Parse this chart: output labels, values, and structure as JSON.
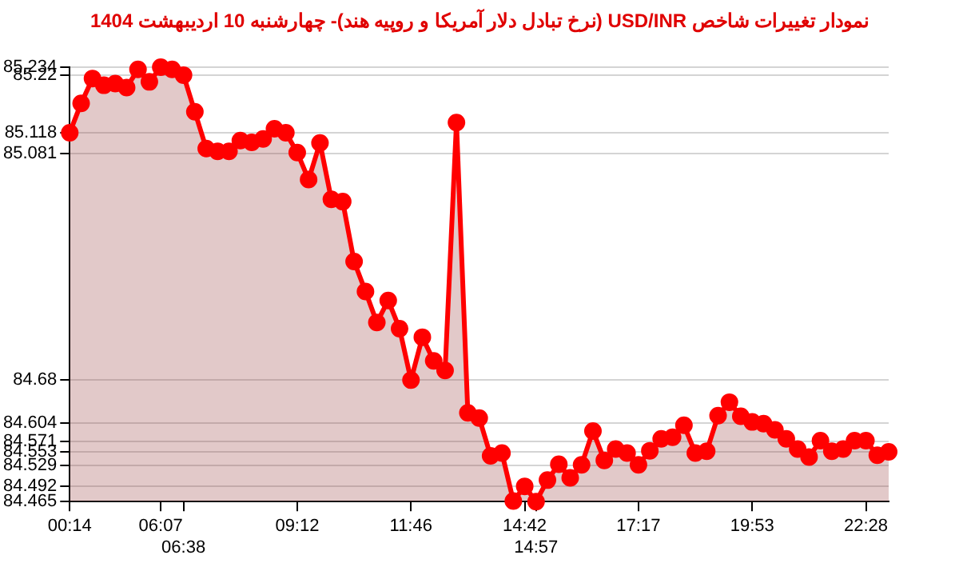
{
  "chart_data": {
    "type": "area",
    "title": "نمودار تغییرات شاخص USD/INR (نرخ تبادل دلار آمریکا و روپیه هند)- چهارشنبه 10 اردیبهشت 1404",
    "categories": [
      "00:14",
      null,
      null,
      null,
      null,
      null,
      null,
      null,
      "06:07",
      null,
      "06:38",
      null,
      null,
      null,
      null,
      null,
      null,
      null,
      null,
      null,
      "09:12",
      null,
      null,
      null,
      null,
      null,
      null,
      null,
      null,
      null,
      "11:46",
      null,
      null,
      null,
      null,
      null,
      null,
      null,
      null,
      null,
      "14:42",
      "14:57",
      null,
      null,
      null,
      null,
      null,
      null,
      null,
      null,
      "17:17",
      null,
      null,
      null,
      null,
      null,
      null,
      null,
      null,
      null,
      "19:53",
      null,
      null,
      null,
      null,
      null,
      null,
      null,
      null,
      null,
      "22:28",
      null,
      null
    ],
    "series": [
      {
        "color": "#ff0000",
        "values": [
          85.118,
          85.17,
          85.214,
          85.202,
          85.205,
          85.198,
          85.23,
          85.208,
          85.234,
          85.23,
          85.22,
          85.155,
          85.09,
          85.085,
          85.085,
          85.104,
          85.101,
          85.107,
          85.125,
          85.118,
          85.083,
          85.035,
          85.1,
          85.0,
          84.996,
          84.89,
          84.837,
          84.782,
          84.821,
          84.771,
          84.68,
          84.756,
          84.714,
          84.697,
          85.136,
          84.622,
          84.613,
          84.546,
          84.551,
          84.466,
          84.492,
          84.465,
          84.503,
          84.531,
          84.507,
          84.53,
          84.59,
          84.538,
          84.558,
          84.551,
          84.53,
          84.555,
          84.576,
          84.579,
          84.6,
          84.551,
          84.554,
          84.617,
          84.641,
          84.616,
          84.606,
          84.603,
          84.592,
          84.576,
          84.558,
          84.544,
          84.573,
          84.554,
          84.558,
          84.573,
          84.573,
          84.547,
          84.553
        ]
      }
    ],
    "ylim": [
      84.465,
      85.234
    ],
    "yticks": [
      85.234,
      85.22,
      85.118,
      85.081,
      84.68,
      84.604,
      84.571,
      84.553,
      84.529,
      84.492,
      84.465
    ],
    "grid": "y",
    "marker": "circle",
    "legend": false
  }
}
